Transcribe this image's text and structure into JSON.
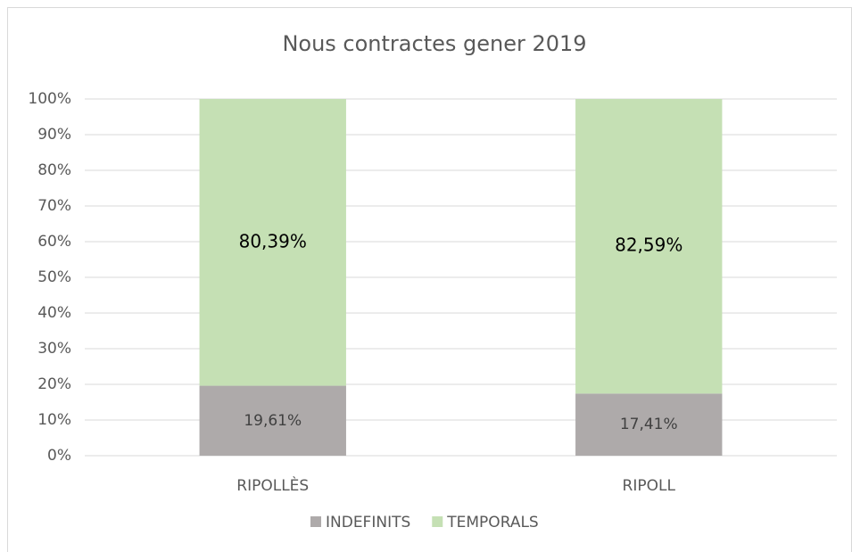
{
  "chart_data": {
    "type": "stacked_bar",
    "title": "Nous contractes gener 2019",
    "categories": [
      "RIPOLLÈS",
      "RIPOLL"
    ],
    "series": [
      {
        "name": "INDEFINITS",
        "color": "#aeaaaa",
        "values": [
          19.61,
          17.41
        ],
        "value_labels": [
          "19,61%",
          "17,41%"
        ]
      },
      {
        "name": "TEMPORALS",
        "color": "#c5e0b4",
        "values": [
          80.39,
          82.59
        ],
        "value_labels": [
          "80,39%",
          "82,59%"
        ]
      }
    ],
    "ylim": [
      0,
      100
    ],
    "yticks": [
      {
        "value": 0,
        "label": "0%"
      },
      {
        "value": 10,
        "label": "10%"
      },
      {
        "value": 20,
        "label": "20%"
      },
      {
        "value": 30,
        "label": "30%"
      },
      {
        "value": 40,
        "label": "40%"
      },
      {
        "value": 50,
        "label": "50%"
      },
      {
        "value": 60,
        "label": "60%"
      },
      {
        "value": 70,
        "label": "70%"
      },
      {
        "value": 80,
        "label": "80%"
      },
      {
        "value": 90,
        "label": "90%"
      },
      {
        "value": 100,
        "label": "100%"
      }
    ],
    "grid": true,
    "legend": "bottom"
  }
}
